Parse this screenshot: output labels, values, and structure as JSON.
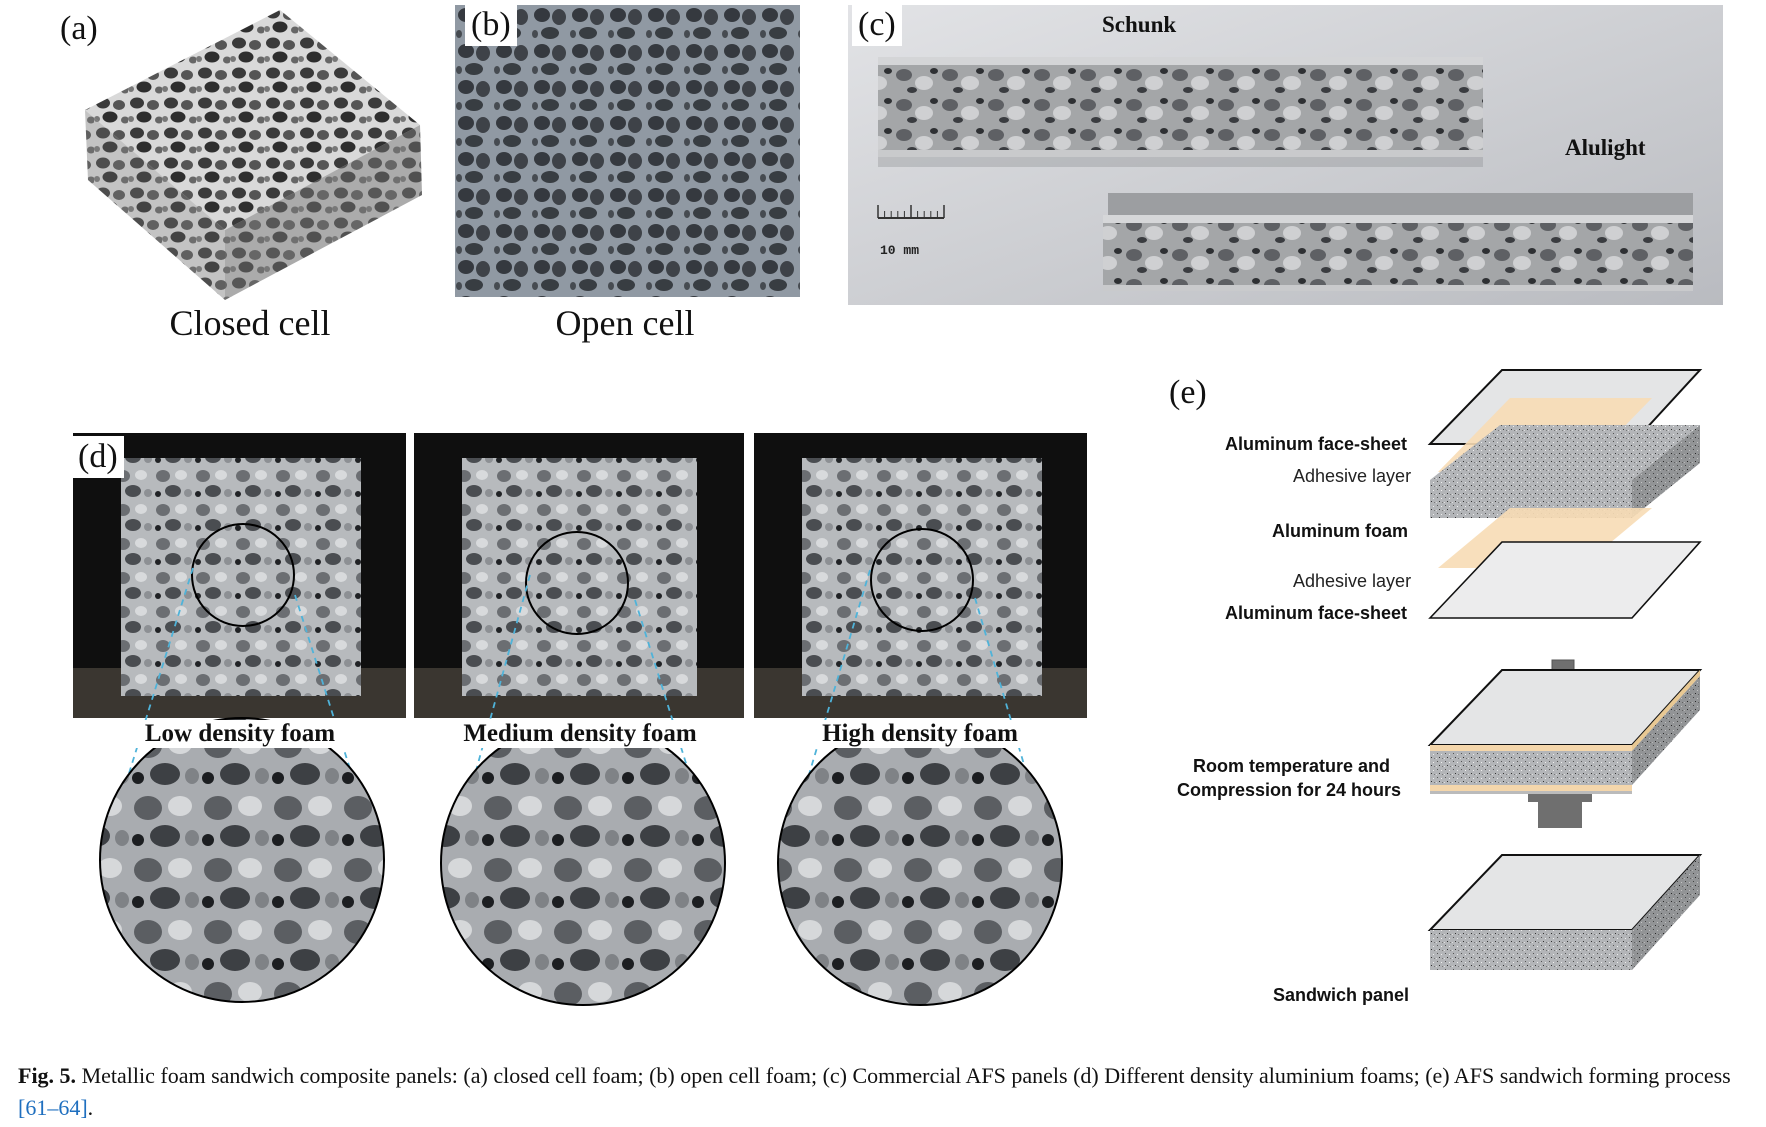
{
  "panels": {
    "a": {
      "letter": "(a)",
      "caption": "Closed cell"
    },
    "b": {
      "letter": "(b)",
      "caption": "Open cell"
    },
    "c": {
      "letter": "(c)",
      "label_top": "Schunk",
      "label_bottom": "Alulight",
      "scale_text": "10 mm"
    },
    "d": {
      "letter": "(d)",
      "foams": [
        {
          "label": "Low density foam"
        },
        {
          "label": "Medium density foam"
        },
        {
          "label": "High density foam"
        }
      ]
    },
    "e": {
      "letter": "(e)",
      "layers": {
        "face_top": "Aluminum face-sheet",
        "adhesive_top": "Adhesive layer",
        "foam": "Aluminum foam",
        "adhesive_bottom": "Adhesive layer",
        "face_bottom": "Aluminum face-sheet"
      },
      "process_line1": "Room temperature and",
      "process_line2": "Compression for 24 hours",
      "result": "Sandwich panel"
    }
  },
  "caption": {
    "lead": "Fig. 5.",
    "text": " Metallic foam sandwich composite panels: (a) closed cell foam; (b) open cell foam; (c) Commercial AFS panels (d) Different density aluminium foams; (e) AFS sandwich forming process ",
    "ref": "[61–64]",
    "end": "."
  }
}
